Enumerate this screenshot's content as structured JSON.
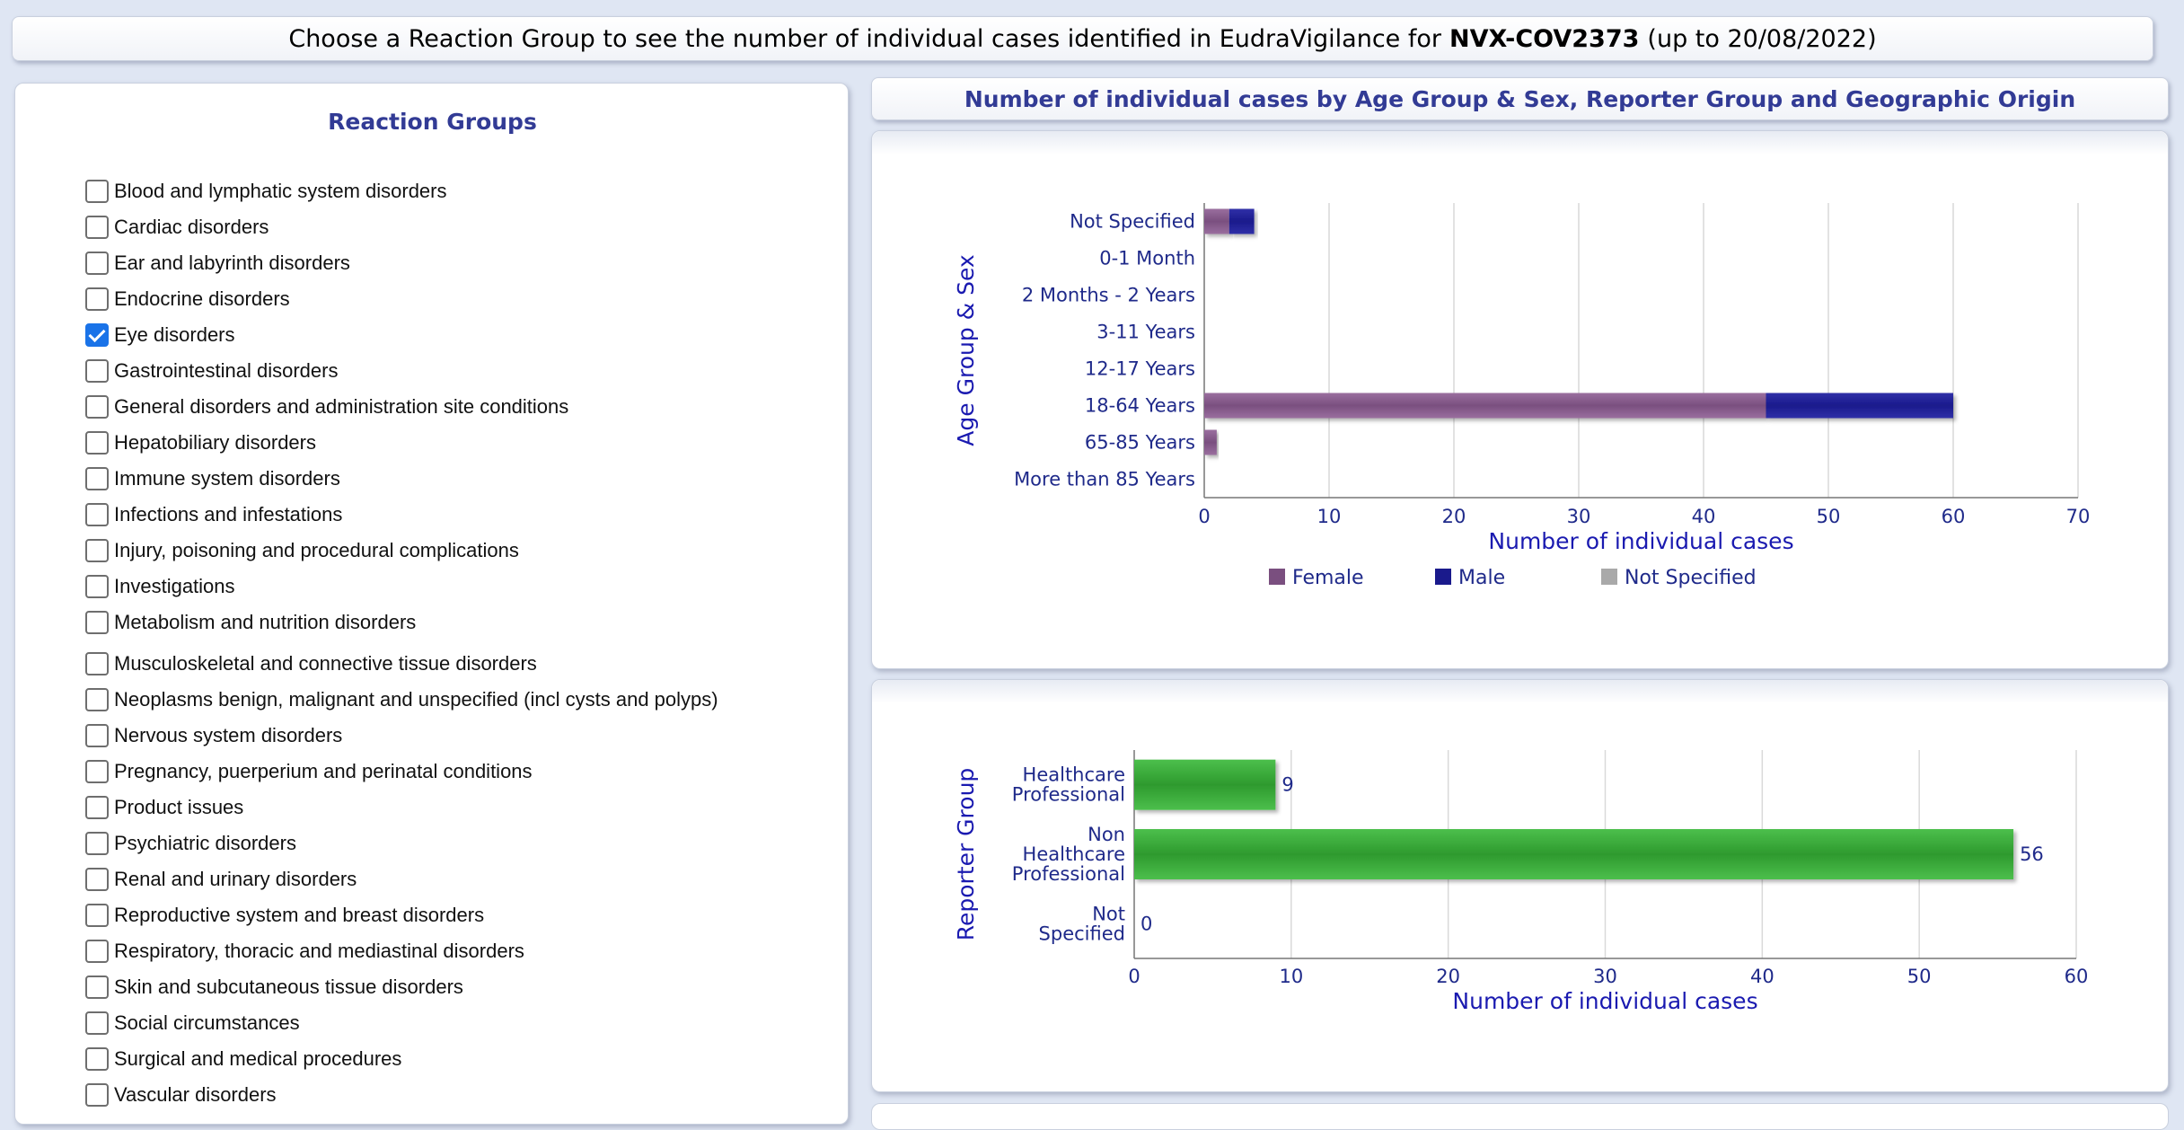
{
  "header": {
    "prefix": "Choose a Reaction Group to see the number of individual cases identified in EudraVigilance for",
    "product": "NVX-COV2373",
    "suffix": "(up to 20/08/2022)"
  },
  "reaction_groups": {
    "title": "Reaction Groups",
    "items": [
      {
        "label": "Blood and lymphatic system disorders",
        "checked": false
      },
      {
        "label": "Cardiac disorders",
        "checked": false
      },
      {
        "label": "Ear and labyrinth disorders",
        "checked": false
      },
      {
        "label": "Endocrine disorders",
        "checked": false
      },
      {
        "label": "Eye disorders",
        "checked": true
      },
      {
        "label": "Gastrointestinal disorders",
        "checked": false
      },
      {
        "label": "General disorders and administration site conditions",
        "checked": false
      },
      {
        "label": "Hepatobiliary disorders",
        "checked": false
      },
      {
        "label": "Immune system disorders",
        "checked": false
      },
      {
        "label": "Infections and infestations",
        "checked": false
      },
      {
        "label": "Injury, poisoning and procedural complications",
        "checked": false
      },
      {
        "label": "Investigations",
        "checked": false
      },
      {
        "label": "Metabolism and nutrition disorders",
        "checked": false
      },
      {
        "label": "Musculoskeletal and connective tissue disorders",
        "checked": false
      },
      {
        "label": "Neoplasms benign, malignant and unspecified (incl cysts and polyps)",
        "checked": false
      },
      {
        "label": "Nervous system disorders",
        "checked": false
      },
      {
        "label": "Pregnancy, puerperium and perinatal conditions",
        "checked": false
      },
      {
        "label": "Product issues",
        "checked": false
      },
      {
        "label": "Psychiatric disorders",
        "checked": false
      },
      {
        "label": "Renal and urinary disorders",
        "checked": false
      },
      {
        "label": "Reproductive system and breast disorders",
        "checked": false
      },
      {
        "label": "Respiratory, thoracic and mediastinal disorders",
        "checked": false
      },
      {
        "label": "Skin and subcutaneous tissue disorders",
        "checked": false
      },
      {
        "label": "Social circumstances",
        "checked": false
      },
      {
        "label": "Surgical and medical procedures",
        "checked": false
      },
      {
        "label": "Vascular disorders",
        "checked": false
      }
    ]
  },
  "right_title": "Number of individual cases by Age Group & Sex, Reporter Group and Geographic Origin",
  "colors": {
    "female": "#7a4f7f",
    "male": "#1a1a8c",
    "not_specified": "#a9a9a9",
    "reporter_bar": "#2e9a2e",
    "axis_text": "#1f2a8a",
    "title_text": "#323b95"
  },
  "chart_data": [
    {
      "type": "bar",
      "orientation": "horizontal",
      "stacked": true,
      "categories": [
        "Not Specified",
        "0-1 Month",
        "2 Months - 2 Years",
        "3-11 Years",
        "12-17 Years",
        "18-64 Years",
        "65-85 Years",
        "More than 85 Years"
      ],
      "series": [
        {
          "name": "Female",
          "values": [
            2,
            0,
            0,
            0,
            0,
            45,
            1,
            0
          ]
        },
        {
          "name": "Male",
          "values": [
            2,
            0,
            0,
            0,
            0,
            15,
            0,
            0
          ]
        },
        {
          "name": "Not Specified",
          "values": [
            0,
            0,
            0,
            0,
            0,
            0,
            0,
            0
          ]
        }
      ],
      "xlabel": "Number of individual cases",
      "ylabel": "Age Group & Sex",
      "xlim": [
        0,
        70
      ],
      "xticks": [
        0,
        10,
        20,
        30,
        40,
        50,
        60,
        70
      ],
      "grid": true,
      "legend": "bottom"
    },
    {
      "type": "bar",
      "orientation": "horizontal",
      "categories": [
        [
          "Healthcare",
          "Professional"
        ],
        [
          "Non",
          "Healthcare",
          "Professional"
        ],
        [
          "Not",
          "Specified"
        ]
      ],
      "values": [
        9,
        56,
        0
      ],
      "data_labels": [
        "9",
        "56",
        "0"
      ],
      "xlabel": "Number of individual cases",
      "ylabel": "Reporter Group",
      "xlim": [
        0,
        60
      ],
      "xticks": [
        0,
        10,
        20,
        30,
        40,
        50,
        60
      ],
      "grid": true
    }
  ]
}
